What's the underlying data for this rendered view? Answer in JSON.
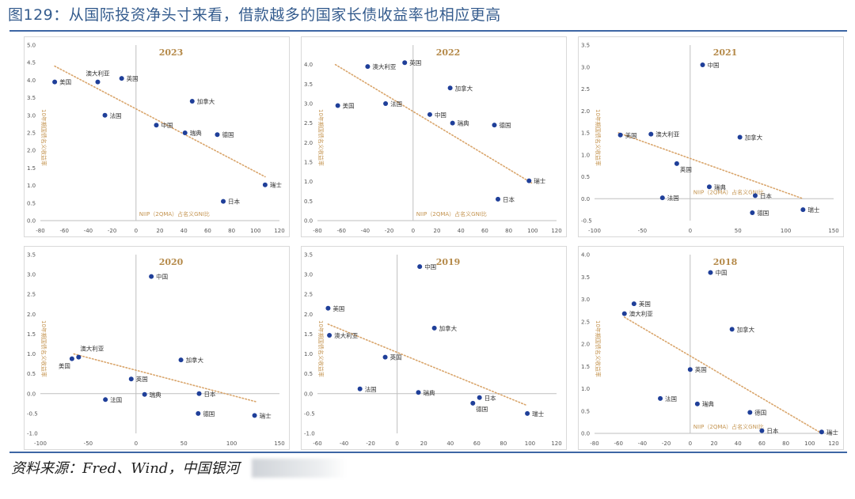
{
  "figure": {
    "title": "图129：从国际投资净头寸来看，借款越多的国家长债收益率也相应更高",
    "source": "资料来源：Fred、Wind，中国银河"
  },
  "colors": {
    "point": "#1f3f99",
    "trend": "#d9a56b",
    "axis": "#bfbfbf",
    "title": "#b58a4a"
  },
  "chart_data": [
    {
      "type": "scatter",
      "title": "2023",
      "xlabel": "NIIP（2QMA）占名义GNI比",
      "ylabel": "10年期国债名义收益率",
      "xlim": [
        -80,
        120
      ],
      "ylim": [
        0,
        5
      ],
      "xticks": [
        -80,
        -60,
        -40,
        -20,
        0,
        20,
        40,
        60,
        80,
        100,
        120
      ],
      "yticks": [
        0.0,
        0.5,
        1.0,
        1.5,
        2.0,
        2.5,
        3.0,
        3.5,
        4.0,
        4.5,
        5.0
      ],
      "ydec": 1,
      "trend": [
        [
          -68,
          4.4
        ],
        [
          108,
          1.25
        ]
      ],
      "points": [
        {
          "label": "美国",
          "x": -68,
          "y": 3.95,
          "pos": "right"
        },
        {
          "label": "澳大利亚",
          "x": -32,
          "y": 3.95,
          "pos": "top"
        },
        {
          "label": "英国",
          "x": -12,
          "y": 4.05,
          "pos": "right"
        },
        {
          "label": "法国",
          "x": -26,
          "y": 3.0,
          "pos": "right"
        },
        {
          "label": "加拿大",
          "x": 47,
          "y": 3.4,
          "pos": "right"
        },
        {
          "label": "中国",
          "x": 17,
          "y": 2.72,
          "pos": "right"
        },
        {
          "label": "瑞典",
          "x": 41,
          "y": 2.5,
          "pos": "right"
        },
        {
          "label": "德国",
          "x": 68,
          "y": 2.45,
          "pos": "right"
        },
        {
          "label": "瑞士",
          "x": 108,
          "y": 1.02,
          "pos": "right"
        },
        {
          "label": "日本",
          "x": 73,
          "y": 0.55,
          "pos": "right"
        }
      ]
    },
    {
      "type": "scatter",
      "title": "2022",
      "xlabel": "NIIP（2QMA）占名义GNI比",
      "ylabel": "10年期国债名义收益率",
      "xlim": [
        -80,
        120
      ],
      "ylim": [
        0,
        4.5
      ],
      "xticks": [
        -80,
        -60,
        -40,
        -20,
        0,
        20,
        40,
        60,
        80,
        100,
        120
      ],
      "yticks": [
        0.0,
        0.5,
        1.0,
        1.5,
        2.0,
        2.5,
        3.0,
        3.5,
        4.0
      ],
      "ydec": 1,
      "trend": [
        [
          -65,
          4.0
        ],
        [
          100,
          0.95
        ]
      ],
      "points": [
        {
          "label": "澳大利亚",
          "x": -38,
          "y": 3.95,
          "pos": "right"
        },
        {
          "label": "英国",
          "x": -7,
          "y": 4.05,
          "pos": "right"
        },
        {
          "label": "美国",
          "x": -63,
          "y": 2.95,
          "pos": "right"
        },
        {
          "label": "法国",
          "x": -23,
          "y": 3.0,
          "pos": "right"
        },
        {
          "label": "加拿大",
          "x": 31,
          "y": 3.4,
          "pos": "right"
        },
        {
          "label": "中国",
          "x": 14,
          "y": 2.72,
          "pos": "right"
        },
        {
          "label": "瑞典",
          "x": 33,
          "y": 2.5,
          "pos": "right"
        },
        {
          "label": "德国",
          "x": 68,
          "y": 2.45,
          "pos": "right"
        },
        {
          "label": "瑞士",
          "x": 97,
          "y": 1.02,
          "pos": "right"
        },
        {
          "label": "日本",
          "x": 71,
          "y": 0.55,
          "pos": "right"
        }
      ]
    },
    {
      "type": "scatter",
      "title": "2021",
      "xlabel": "NIIP（2QMA）占名义GNI比",
      "ylabel": "10年期国债名义收益率",
      "xlim": [
        -100,
        150
      ],
      "ylim": [
        -0.5,
        3.5
      ],
      "xticks": [
        -100,
        -50,
        0,
        50,
        100,
        150
      ],
      "yticks": [
        -0.5,
        0.0,
        0.5,
        1.0,
        1.5,
        2.0,
        2.5,
        3.0,
        3.5
      ],
      "ydec": 1,
      "trend": [
        [
          -75,
          1.5
        ],
        [
          118,
          0.0
        ]
      ],
      "points": [
        {
          "label": "中国",
          "x": 13,
          "y": 3.05,
          "pos": "right"
        },
        {
          "label": "美国",
          "x": -73,
          "y": 1.45,
          "pos": "right"
        },
        {
          "label": "澳大利亚",
          "x": -41,
          "y": 1.47,
          "pos": "right"
        },
        {
          "label": "加拿大",
          "x": 52,
          "y": 1.4,
          "pos": "right"
        },
        {
          "label": "英国",
          "x": -14,
          "y": 0.8,
          "pos": "bottomright"
        },
        {
          "label": "瑞典",
          "x": 20,
          "y": 0.27,
          "pos": "right"
        },
        {
          "label": "法国",
          "x": -29,
          "y": 0.02,
          "pos": "right"
        },
        {
          "label": "日本",
          "x": 68,
          "y": 0.07,
          "pos": "right"
        },
        {
          "label": "德国",
          "x": 65,
          "y": -0.32,
          "pos": "right"
        },
        {
          "label": "瑞士",
          "x": 118,
          "y": -0.25,
          "pos": "right"
        }
      ]
    },
    {
      "type": "scatter",
      "title": "2020",
      "xlabel": "",
      "ylabel": "10年期国债名义收益率",
      "xlim": [
        -100,
        150
      ],
      "ylim": [
        -1.0,
        3.5
      ],
      "xticks": [
        -100,
        -50,
        0,
        50,
        100,
        150
      ],
      "yticks": [
        -1.0,
        -0.5,
        0.0,
        0.5,
        1.0,
        1.5,
        2.0,
        2.5,
        3.0,
        3.5
      ],
      "ydec": 1,
      "trend": [
        [
          -65,
          1.0
        ],
        [
          125,
          -0.2
        ]
      ],
      "points": [
        {
          "label": "中国",
          "x": 16,
          "y": 2.95,
          "pos": "right"
        },
        {
          "label": "澳大利亚",
          "x": -60,
          "y": 0.92,
          "pos": "topright"
        },
        {
          "label": "美国",
          "x": -67,
          "y": 0.88,
          "pos": "bottomleft"
        },
        {
          "label": "加拿大",
          "x": 47,
          "y": 0.85,
          "pos": "right"
        },
        {
          "label": "英国",
          "x": -5,
          "y": 0.37,
          "pos": "right"
        },
        {
          "label": "瑞典",
          "x": 9,
          "y": -0.02,
          "pos": "right"
        },
        {
          "label": "日本",
          "x": 66,
          "y": 0.0,
          "pos": "right"
        },
        {
          "label": "法国",
          "x": -32,
          "y": -0.15,
          "pos": "right"
        },
        {
          "label": "德国",
          "x": 65,
          "y": -0.5,
          "pos": "right"
        },
        {
          "label": "瑞士",
          "x": 124,
          "y": -0.55,
          "pos": "right"
        }
      ]
    },
    {
      "type": "scatter",
      "title": "2019",
      "xlabel": "",
      "ylabel": "10年期国债名义收益率",
      "xlim": [
        -60,
        120
      ],
      "ylim": [
        -1.0,
        3.5
      ],
      "xticks": [
        -60,
        -40,
        -20,
        0,
        20,
        40,
        60,
        80,
        100,
        120
      ],
      "yticks": [
        -1.0,
        -0.5,
        0.0,
        0.5,
        1.0,
        1.5,
        2.0,
        2.5,
        3.0,
        3.5
      ],
      "ydec": 1,
      "trend": [
        [
          -52,
          1.75
        ],
        [
          98,
          -0.3
        ]
      ],
      "points": [
        {
          "label": "中国",
          "x": 17,
          "y": 3.2,
          "pos": "right"
        },
        {
          "label": "美国",
          "x": -52,
          "y": 2.15,
          "pos": "right"
        },
        {
          "label": "加拿大",
          "x": 28,
          "y": 1.65,
          "pos": "right"
        },
        {
          "label": "澳大利亚",
          "x": -51,
          "y": 1.47,
          "pos": "right"
        },
        {
          "label": "英国",
          "x": -9,
          "y": 0.92,
          "pos": "right"
        },
        {
          "label": "法国",
          "x": -28,
          "y": 0.12,
          "pos": "right"
        },
        {
          "label": "瑞典",
          "x": 16,
          "y": 0.03,
          "pos": "right"
        },
        {
          "label": "日本",
          "x": 62,
          "y": -0.1,
          "pos": "right"
        },
        {
          "label": "德国",
          "x": 57,
          "y": -0.24,
          "pos": "bottomright"
        },
        {
          "label": "瑞士",
          "x": 98,
          "y": -0.5,
          "pos": "right"
        }
      ]
    },
    {
      "type": "scatter",
      "title": "2018",
      "xlabel": "NIIP（2QMA）占名义GNI比",
      "ylabel": "10年期国债名义收益率",
      "xlim": [
        -80,
        120
      ],
      "ylim": [
        0,
        4.0
      ],
      "xticks": [
        -80,
        -60,
        -40,
        -20,
        0,
        20,
        40,
        60,
        80,
        100,
        120
      ],
      "yticks": [
        0.0,
        0.5,
        1.0,
        1.5,
        2.0,
        2.5,
        3.0,
        3.5,
        4.0
      ],
      "ydec": 1,
      "trend": [
        [
          -55,
          2.6
        ],
        [
          110,
          0.0
        ]
      ],
      "points": [
        {
          "label": "中国",
          "x": 17,
          "y": 3.6,
          "pos": "right"
        },
        {
          "label": "美国",
          "x": -47,
          "y": 2.9,
          "pos": "right"
        },
        {
          "label": "澳大利亚",
          "x": -55,
          "y": 2.68,
          "pos": "right"
        },
        {
          "label": "加拿大",
          "x": 35,
          "y": 2.33,
          "pos": "right"
        },
        {
          "label": "英国",
          "x": 0,
          "y": 1.43,
          "pos": "right"
        },
        {
          "label": "法国",
          "x": -25,
          "y": 0.78,
          "pos": "right"
        },
        {
          "label": "瑞典",
          "x": 6,
          "y": 0.66,
          "pos": "right"
        },
        {
          "label": "德国",
          "x": 50,
          "y": 0.47,
          "pos": "right"
        },
        {
          "label": "日本",
          "x": 60,
          "y": 0.06,
          "pos": "right"
        },
        {
          "label": "瑞士",
          "x": 110,
          "y": 0.03,
          "pos": "right"
        }
      ]
    }
  ]
}
